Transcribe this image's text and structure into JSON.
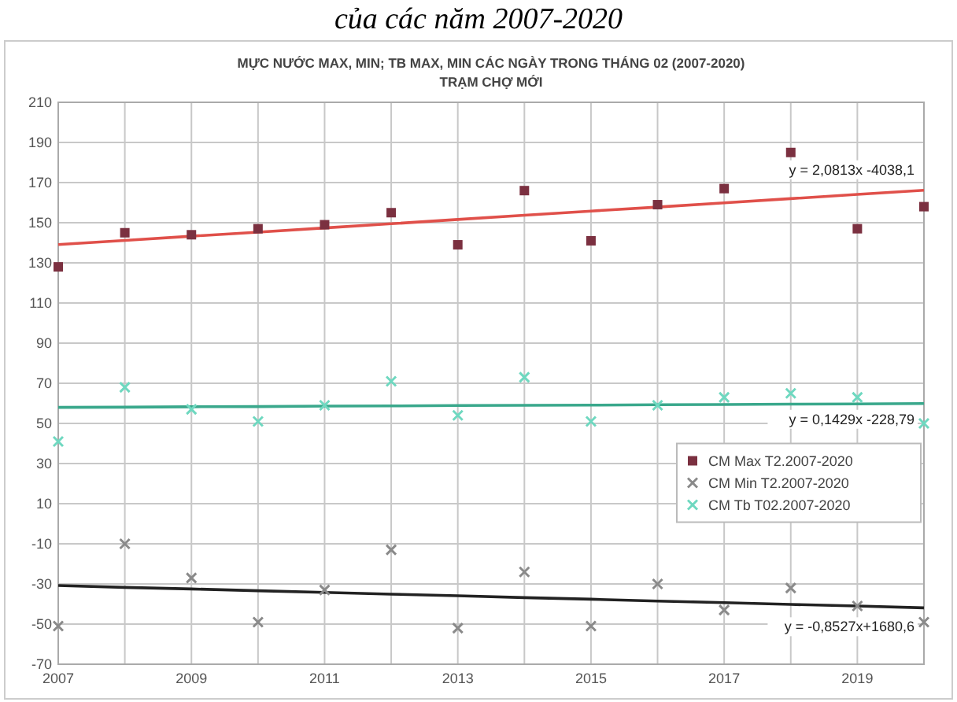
{
  "chart_data": {
    "type": "scatter",
    "title": "MỰC NƯỚC MAX, MIN; TB MAX, MIN CÁC NGÀY TRONG THÁNG 02 (2007-2020)",
    "subtitle": "TRẠM CHỢ MỚI",
    "x": [
      2007,
      2008,
      2009,
      2010,
      2011,
      2012,
      2013,
      2014,
      2015,
      2016,
      2017,
      2018,
      2019,
      2020
    ],
    "series": [
      {
        "name": "CM Max T2.2007-2020",
        "color": "#7b3040",
        "marker": "square",
        "values": [
          128,
          145,
          144,
          147,
          149,
          155,
          139,
          166,
          141,
          159,
          167,
          185,
          147,
          158
        ]
      },
      {
        "name": "CM Min T2.2007-2020",
        "color": "#8a8a8a",
        "marker": "cross",
        "values": [
          -51,
          -10,
          -27,
          -49,
          -33,
          -13,
          -52,
          -24,
          -51,
          -30,
          -43,
          -32,
          -41,
          -49
        ]
      },
      {
        "name": "CM Tb T02.2007-2020",
        "color": "#6fd8c0",
        "marker": "cross",
        "values": [
          41,
          68,
          57,
          51,
          59,
          71,
          54,
          73,
          51,
          59,
          63,
          65,
          63,
          50
        ]
      },
      {
        "type": "line",
        "color": "#e0504a",
        "values": [
          139.1,
          141.2,
          143.3,
          145.3,
          147.4,
          149.5,
          151.6,
          153.7,
          155.8,
          157.8,
          159.9,
          162.0,
          164.1,
          166.2
        ]
      },
      {
        "type": "line",
        "color": "#3aa88c",
        "values": [
          58.0,
          58.1,
          58.3,
          58.4,
          58.6,
          58.7,
          58.9,
          59.0,
          59.1,
          59.3,
          59.4,
          59.6,
          59.7,
          59.9
        ]
      },
      {
        "type": "line",
        "color": "#222222",
        "values": [
          -30.8,
          -31.7,
          -32.5,
          -33.4,
          -34.2,
          -35.1,
          -35.9,
          -36.8,
          -37.6,
          -38.5,
          -39.3,
          -40.2,
          -41.0,
          -41.9
        ]
      }
    ],
    "xlim": [
      2007,
      2020
    ],
    "xticks": [
      2007,
      {
        "value": 2008,
        "label": null
      },
      2009,
      {
        "value": 2010,
        "label": null
      },
      2011,
      {
        "value": 2012,
        "label": null
      },
      2013,
      {
        "value": 2014,
        "label": null
      },
      2015,
      {
        "value": 2016,
        "label": null
      },
      2017,
      {
        "value": 2018,
        "label": null
      },
      2019,
      {
        "value": 2020,
        "label": null
      }
    ],
    "ylim": [
      -70,
      210
    ],
    "yticks": [
      -70,
      -50,
      -30,
      -10,
      10,
      30,
      50,
      70,
      90,
      110,
      130,
      150,
      170,
      190,
      210
    ],
    "grid": true,
    "legend": "right",
    "annotations": [
      "của các năm 2007-2020",
      "y = 2,0813x -4038,1",
      "y = 0,1429x -228,79",
      "y = -0,8527x+1680,6"
    ]
  }
}
